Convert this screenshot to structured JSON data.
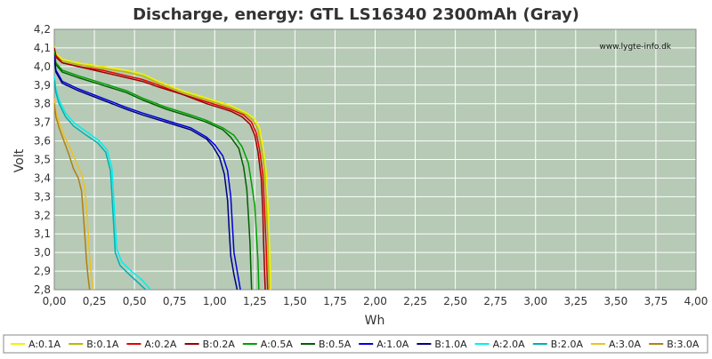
{
  "chart_data": {
    "type": "line",
    "title": "Discharge, energy: GTL LS16340 2300mAh (Gray)",
    "watermark": "www.lygte-info.dk",
    "xlabel": "Wh",
    "ylabel": "Volt",
    "xlim": [
      0,
      4.0
    ],
    "ylim": [
      2.8,
      4.2
    ],
    "xticks": [
      "0,00",
      "0,25",
      "0,50",
      "0,75",
      "1,00",
      "1,25",
      "1,50",
      "1,75",
      "2,00",
      "2,25",
      "2,50",
      "2,75",
      "3,00",
      "3,25",
      "3,50",
      "3,75",
      "4,00"
    ],
    "yticks": [
      "2,8",
      "2,9",
      "3,0",
      "3,1",
      "3,2",
      "3,3",
      "3,4",
      "3,5",
      "3,6",
      "3,7",
      "3,8",
      "3,9",
      "4,0",
      "4,1",
      "4,2"
    ],
    "grid": true,
    "legend_position": "bottom",
    "colors": {
      "plot_background": "#b6cab6",
      "grid": "#ffffff"
    },
    "series": [
      {
        "name": "A:0.1A",
        "color": "#f2f200",
        "points": [
          [
            0,
            4.11
          ],
          [
            0.01,
            4.07
          ],
          [
            0.05,
            4.04
          ],
          [
            0.15,
            4.02
          ],
          [
            0.3,
            4.0
          ],
          [
            0.45,
            3.98
          ],
          [
            0.55,
            3.96
          ],
          [
            0.65,
            3.92
          ],
          [
            0.8,
            3.87
          ],
          [
            0.95,
            3.83
          ],
          [
            1.1,
            3.79
          ],
          [
            1.2,
            3.75
          ],
          [
            1.25,
            3.72
          ],
          [
            1.28,
            3.67
          ],
          [
            1.3,
            3.58
          ],
          [
            1.32,
            3.45
          ],
          [
            1.33,
            3.3
          ],
          [
            1.34,
            3.1
          ],
          [
            1.345,
            2.95
          ],
          [
            1.35,
            2.8
          ]
        ]
      },
      {
        "name": "B:0.1A",
        "color": "#b8b800",
        "points": [
          [
            0,
            4.1
          ],
          [
            0.01,
            4.06
          ],
          [
            0.05,
            4.03
          ],
          [
            0.15,
            4.01
          ],
          [
            0.3,
            3.99
          ],
          [
            0.45,
            3.97
          ],
          [
            0.55,
            3.95
          ],
          [
            0.65,
            3.91
          ],
          [
            0.8,
            3.86
          ],
          [
            0.95,
            3.82
          ],
          [
            1.1,
            3.78
          ],
          [
            1.2,
            3.74
          ],
          [
            1.24,
            3.71
          ],
          [
            1.27,
            3.66
          ],
          [
            1.29,
            3.57
          ],
          [
            1.31,
            3.45
          ],
          [
            1.32,
            3.3
          ],
          [
            1.33,
            3.1
          ],
          [
            1.335,
            2.95
          ],
          [
            1.34,
            2.8
          ]
        ]
      },
      {
        "name": "A:0.2A",
        "color": "#e60000",
        "points": [
          [
            0,
            4.1
          ],
          [
            0.01,
            4.06
          ],
          [
            0.05,
            4.02
          ],
          [
            0.15,
            4.0
          ],
          [
            0.3,
            3.98
          ],
          [
            0.45,
            3.95
          ],
          [
            0.55,
            3.93
          ],
          [
            0.65,
            3.9
          ],
          [
            0.8,
            3.85
          ],
          [
            0.95,
            3.81
          ],
          [
            1.1,
            3.77
          ],
          [
            1.18,
            3.74
          ],
          [
            1.23,
            3.7
          ],
          [
            1.26,
            3.64
          ],
          [
            1.28,
            3.55
          ],
          [
            1.3,
            3.42
          ],
          [
            1.31,
            3.25
          ],
          [
            1.32,
            3.05
          ],
          [
            1.325,
            2.92
          ],
          [
            1.33,
            2.8
          ]
        ]
      },
      {
        "name": "B:0.2A",
        "color": "#990000",
        "points": [
          [
            0,
            4.1
          ],
          [
            0.01,
            4.05
          ],
          [
            0.05,
            4.02
          ],
          [
            0.15,
            4.0
          ],
          [
            0.3,
            3.97
          ],
          [
            0.45,
            3.94
          ],
          [
            0.55,
            3.92
          ],
          [
            0.65,
            3.89
          ],
          [
            0.8,
            3.85
          ],
          [
            0.95,
            3.8
          ],
          [
            1.1,
            3.76
          ],
          [
            1.17,
            3.73
          ],
          [
            1.22,
            3.69
          ],
          [
            1.25,
            3.63
          ],
          [
            1.27,
            3.54
          ],
          [
            1.29,
            3.4
          ],
          [
            1.3,
            3.22
          ],
          [
            1.305,
            3.05
          ],
          [
            1.31,
            2.92
          ],
          [
            1.315,
            2.8
          ]
        ]
      },
      {
        "name": "A:0.5A",
        "color": "#00a000",
        "points": [
          [
            0,
            4.08
          ],
          [
            0.01,
            4.02
          ],
          [
            0.05,
            3.98
          ],
          [
            0.15,
            3.95
          ],
          [
            0.3,
            3.91
          ],
          [
            0.45,
            3.87
          ],
          [
            0.55,
            3.83
          ],
          [
            0.7,
            3.78
          ],
          [
            0.85,
            3.74
          ],
          [
            0.95,
            3.71
          ],
          [
            1.05,
            3.67
          ],
          [
            1.12,
            3.63
          ],
          [
            1.17,
            3.57
          ],
          [
            1.21,
            3.48
          ],
          [
            1.23,
            3.37
          ],
          [
            1.25,
            3.25
          ],
          [
            1.26,
            3.1
          ],
          [
            1.27,
            2.95
          ],
          [
            1.275,
            2.8
          ]
        ]
      },
      {
        "name": "B:0.5A",
        "color": "#006000",
        "points": [
          [
            0,
            4.07
          ],
          [
            0.01,
            4.01
          ],
          [
            0.05,
            3.97
          ],
          [
            0.15,
            3.94
          ],
          [
            0.3,
            3.9
          ],
          [
            0.45,
            3.86
          ],
          [
            0.55,
            3.82
          ],
          [
            0.7,
            3.77
          ],
          [
            0.85,
            3.73
          ],
          [
            0.95,
            3.7
          ],
          [
            1.05,
            3.66
          ],
          [
            1.1,
            3.62
          ],
          [
            1.15,
            3.56
          ],
          [
            1.18,
            3.46
          ],
          [
            1.2,
            3.34
          ],
          [
            1.21,
            3.2
          ],
          [
            1.22,
            3.05
          ],
          [
            1.225,
            2.92
          ],
          [
            1.23,
            2.8
          ]
        ]
      },
      {
        "name": "A:1.0A",
        "color": "#0000e0",
        "points": [
          [
            0,
            4.06
          ],
          [
            0.01,
            3.98
          ],
          [
            0.05,
            3.92
          ],
          [
            0.15,
            3.88
          ],
          [
            0.3,
            3.83
          ],
          [
            0.45,
            3.78
          ],
          [
            0.55,
            3.75
          ],
          [
            0.7,
            3.71
          ],
          [
            0.85,
            3.67
          ],
          [
            0.95,
            3.62
          ],
          [
            1.0,
            3.58
          ],
          [
            1.05,
            3.52
          ],
          [
            1.08,
            3.44
          ],
          [
            1.1,
            3.3
          ],
          [
            1.11,
            3.15
          ],
          [
            1.12,
            3.0
          ],
          [
            1.14,
            2.9
          ],
          [
            1.16,
            2.8
          ]
        ]
      },
      {
        "name": "B:1.0A",
        "color": "#000080",
        "points": [
          [
            0,
            4.05
          ],
          [
            0.01,
            3.97
          ],
          [
            0.05,
            3.91
          ],
          [
            0.15,
            3.87
          ],
          [
            0.3,
            3.82
          ],
          [
            0.45,
            3.77
          ],
          [
            0.55,
            3.74
          ],
          [
            0.7,
            3.7
          ],
          [
            0.85,
            3.66
          ],
          [
            0.95,
            3.61
          ],
          [
            0.99,
            3.57
          ],
          [
            1.03,
            3.51
          ],
          [
            1.06,
            3.42
          ],
          [
            1.08,
            3.28
          ],
          [
            1.09,
            3.12
          ],
          [
            1.1,
            2.98
          ],
          [
            1.12,
            2.88
          ],
          [
            1.14,
            2.8
          ]
        ]
      },
      {
        "name": "A:2.0A",
        "color": "#00f0f0",
        "points": [
          [
            0,
            3.95
          ],
          [
            0.01,
            3.88
          ],
          [
            0.03,
            3.82
          ],
          [
            0.07,
            3.75
          ],
          [
            0.12,
            3.7
          ],
          [
            0.2,
            3.65
          ],
          [
            0.28,
            3.6
          ],
          [
            0.33,
            3.55
          ],
          [
            0.36,
            3.45
          ],
          [
            0.37,
            3.3
          ],
          [
            0.38,
            3.15
          ],
          [
            0.39,
            3.02
          ],
          [
            0.42,
            2.95
          ],
          [
            0.48,
            2.9
          ],
          [
            0.55,
            2.85
          ],
          [
            0.6,
            2.8
          ]
        ]
      },
      {
        "name": "B:2.0A",
        "color": "#00b0b0",
        "points": [
          [
            0,
            3.93
          ],
          [
            0.01,
            3.86
          ],
          [
            0.03,
            3.8
          ],
          [
            0.07,
            3.73
          ],
          [
            0.12,
            3.68
          ],
          [
            0.2,
            3.63
          ],
          [
            0.27,
            3.59
          ],
          [
            0.32,
            3.54
          ],
          [
            0.35,
            3.44
          ],
          [
            0.36,
            3.3
          ],
          [
            0.37,
            3.15
          ],
          [
            0.38,
            3.0
          ],
          [
            0.41,
            2.93
          ],
          [
            0.47,
            2.88
          ],
          [
            0.52,
            2.84
          ],
          [
            0.57,
            2.8
          ]
        ]
      },
      {
        "name": "A:3.0A",
        "color": "#f0c020",
        "points": [
          [
            0,
            3.83
          ],
          [
            0.01,
            3.76
          ],
          [
            0.03,
            3.7
          ],
          [
            0.06,
            3.63
          ],
          [
            0.1,
            3.56
          ],
          [
            0.14,
            3.48
          ],
          [
            0.17,
            3.42
          ],
          [
            0.19,
            3.35
          ],
          [
            0.2,
            3.25
          ],
          [
            0.21,
            3.12
          ],
          [
            0.22,
            2.98
          ],
          [
            0.23,
            2.88
          ],
          [
            0.24,
            2.8
          ]
        ]
      },
      {
        "name": "B:3.0A",
        "color": "#b08010",
        "points": [
          [
            0,
            3.8
          ],
          [
            0.01,
            3.73
          ],
          [
            0.03,
            3.67
          ],
          [
            0.06,
            3.6
          ],
          [
            0.09,
            3.53
          ],
          [
            0.12,
            3.45
          ],
          [
            0.15,
            3.4
          ],
          [
            0.17,
            3.33
          ],
          [
            0.18,
            3.22
          ],
          [
            0.19,
            3.1
          ],
          [
            0.2,
            2.96
          ],
          [
            0.21,
            2.87
          ],
          [
            0.22,
            2.8
          ]
        ]
      }
    ]
  }
}
